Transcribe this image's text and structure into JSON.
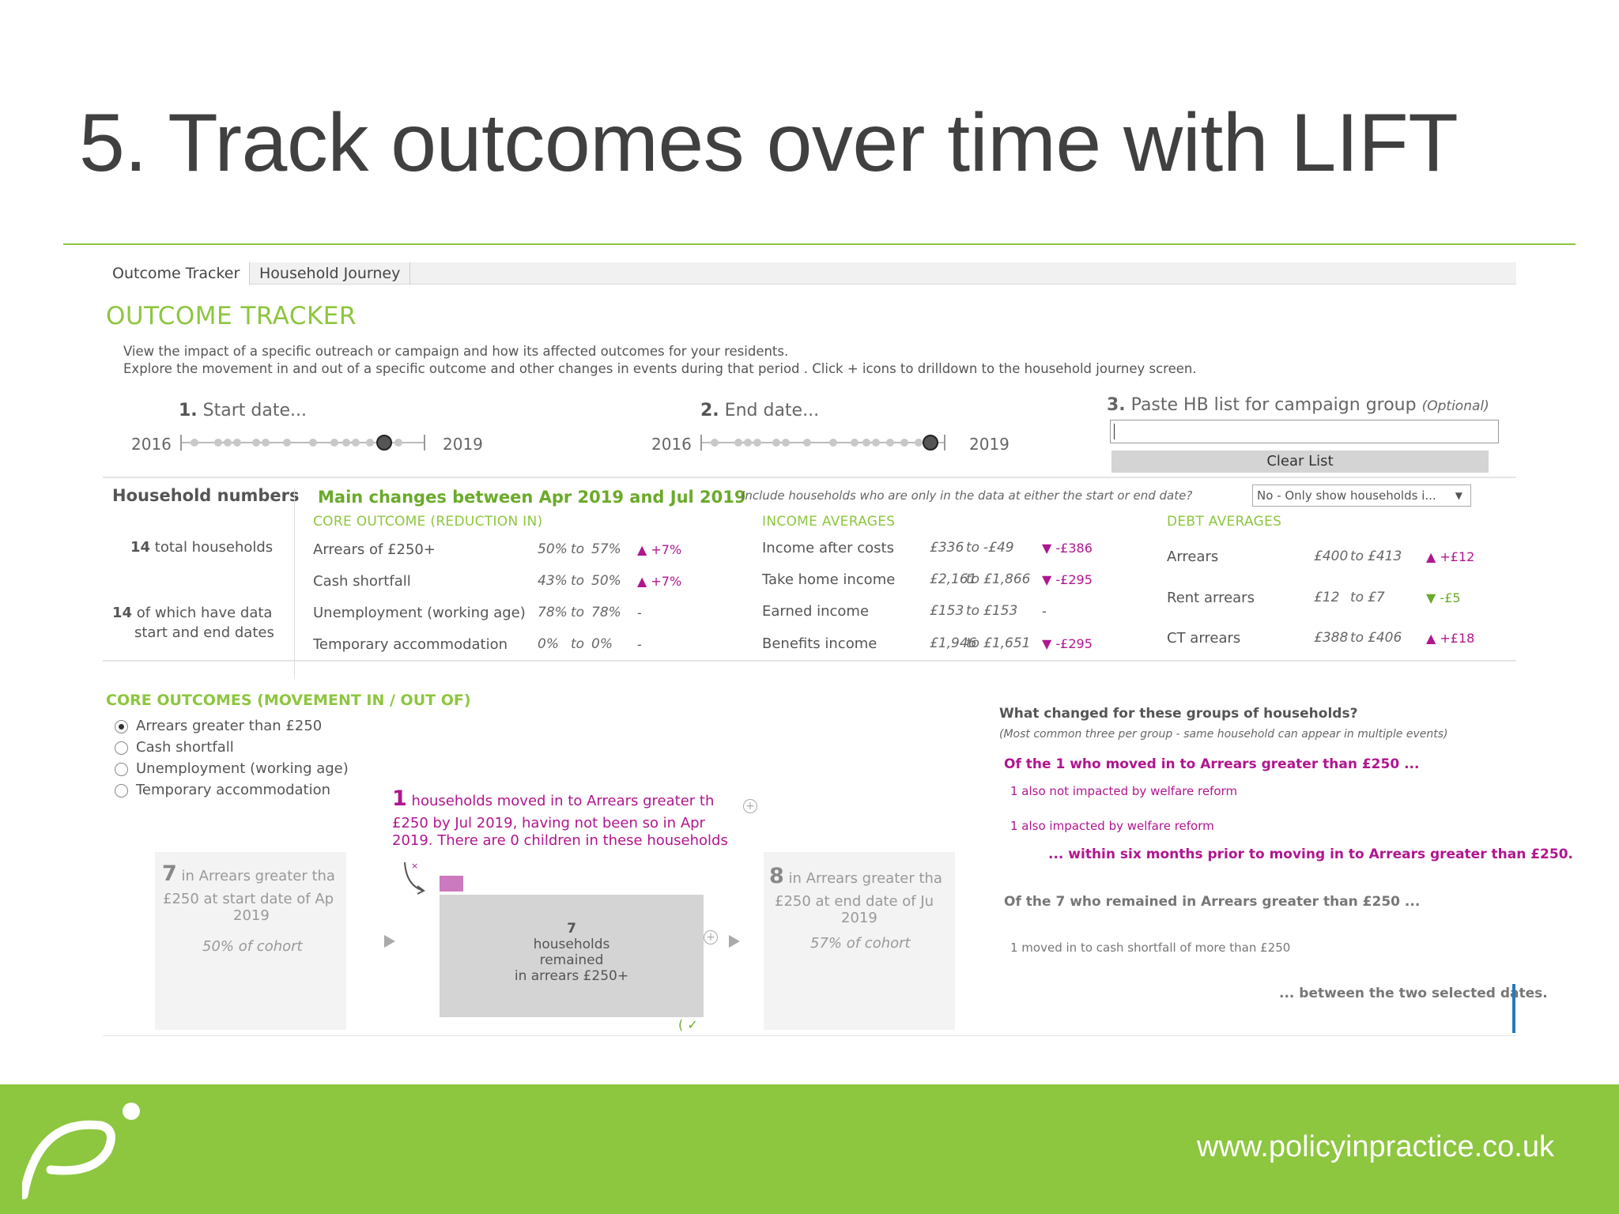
{
  "slide": {
    "title": "5. Track outcomes over time with LIFT",
    "url": "www.policyinpractice.co.uk"
  },
  "tabs": [
    {
      "label": "Outcome Tracker"
    },
    {
      "label": "Household Journey"
    }
  ],
  "tracker": {
    "title": "OUTCOME TRACKER",
    "intro1": "View the impact of a specific outreach or campaign and how its affected outcomes for your residents.",
    "intro2": "Explore the movement in and out of a specific outcome and other changes in events during that period . Click + icons to drilldown to the household journey screen.",
    "start": {
      "num": "1.",
      "label": "Start date...",
      "from": "2016",
      "to": "2019",
      "handle_fraction": 0.86
    },
    "end": {
      "num": "2.",
      "label": "End date...",
      "from": "2016",
      "to": "2019",
      "handle_fraction": 0.97
    },
    "hb": {
      "num": "3.",
      "label": "Paste HB list for campaign group",
      "optional": "(Optional)",
      "value": "",
      "clear": "Clear List"
    }
  },
  "household": {
    "heading": "Household numbers",
    "total_num": "14",
    "total_label": "total households",
    "data_num": "14",
    "data_label1": "of which have data",
    "data_label2": "start and end dates"
  },
  "changes": {
    "title": "Main changes between Apr 2019 and Jul 2019",
    "include_q": "Include households who are only in the data at either the start or end date?",
    "include_value": "No - Only show households i...",
    "core_title": "CORE OUTCOME (REDUCTION IN)",
    "core": [
      {
        "label": "Arrears of £250+",
        "from": "50%",
        "to": "57%",
        "change": "▲ +7%"
      },
      {
        "label": "Cash shortfall",
        "from": "43%",
        "to": "50%",
        "change": "▲ +7%"
      },
      {
        "label": "Unemployment (working age)",
        "from": "78%",
        "to": "78%",
        "change": "-"
      },
      {
        "label": "Temporary accommodation",
        "from": "0%",
        "to": "0%",
        "change": "-"
      }
    ],
    "income_title": "INCOME AVERAGES",
    "income": [
      {
        "label": "Income after costs",
        "from": "£336",
        "to": "-£49",
        "change": "▼ -£386"
      },
      {
        "label": "Take home income",
        "from": "£2,161",
        "to": "£1,866",
        "change": "▼ -£295"
      },
      {
        "label": "Earned income",
        "from": "£153",
        "to": "£153",
        "change": "-"
      },
      {
        "label": "Benefits income",
        "from": "£1,946",
        "to": "£1,651",
        "change": "▼ -£295"
      }
    ],
    "debt_title": "DEBT AVERAGES",
    "debt": [
      {
        "label": "Arrears",
        "from": "£400",
        "to": "£413",
        "change": "▲ +£12"
      },
      {
        "label": "Rent arrears",
        "from": "£12",
        "to": "£7",
        "change": "▼ -£5"
      },
      {
        "label": "CT arrears",
        "from": "£388",
        "to": "£406",
        "change": "▲ +£18"
      }
    ],
    "to_word": "to"
  },
  "movement": {
    "title": "CORE OUTCOMES (MOVEMENT IN / OUT OF)",
    "options": [
      {
        "label": "Arrears greater than £250",
        "selected": true
      },
      {
        "label": "Cash shortfall",
        "selected": false
      },
      {
        "label": "Unemployment (working age)",
        "selected": false
      },
      {
        "label": "Temporary accommodation",
        "selected": false
      }
    ],
    "moved_in_num": "1",
    "moved_in_l1": "households moved in to Arrears greater th",
    "moved_in_l2": "£250 by Jul 2019, having not been so in Apr",
    "moved_in_l3": "2019. There are 0 children in these households",
    "start_num": "7",
    "start_l1": "in Arrears greater tha",
    "start_l2": "£250 at start date of Ap",
    "start_l3": "2019",
    "start_pct": "50% of cohort",
    "remained_num": "7",
    "remained_l1": "households",
    "remained_l2": "remained",
    "remained_l3": "in arrears £250+",
    "end_num": "8",
    "end_l1": "in Arrears greater tha",
    "end_l2": "£250 at end date of Ju",
    "end_l3": "2019",
    "end_pct": "57% of cohort"
  },
  "groups": {
    "heading": "What changed for these groups of households?",
    "subheading": "(Most common three per group - same household can appear in multiple events)",
    "moved_head": "Of the 1 who moved in to Arrears greater than £250 ...",
    "moved_items": [
      "1 also not impacted by welfare reform",
      "1 also impacted by welfare reform"
    ],
    "moved_tail": "... within six months prior to moving in to Arrears greater than £250.",
    "remained_head": "Of the 7 who remained in Arrears greater than £250 ...",
    "remained_items": [
      "1 moved in to cash shortfall of more than £250"
    ],
    "remained_tail": "... between the two selected dates."
  },
  "colors": {
    "brand_green": "#8dc63f",
    "accent_pink": "#b0168f",
    "grey_box": "#d4d4d4"
  }
}
